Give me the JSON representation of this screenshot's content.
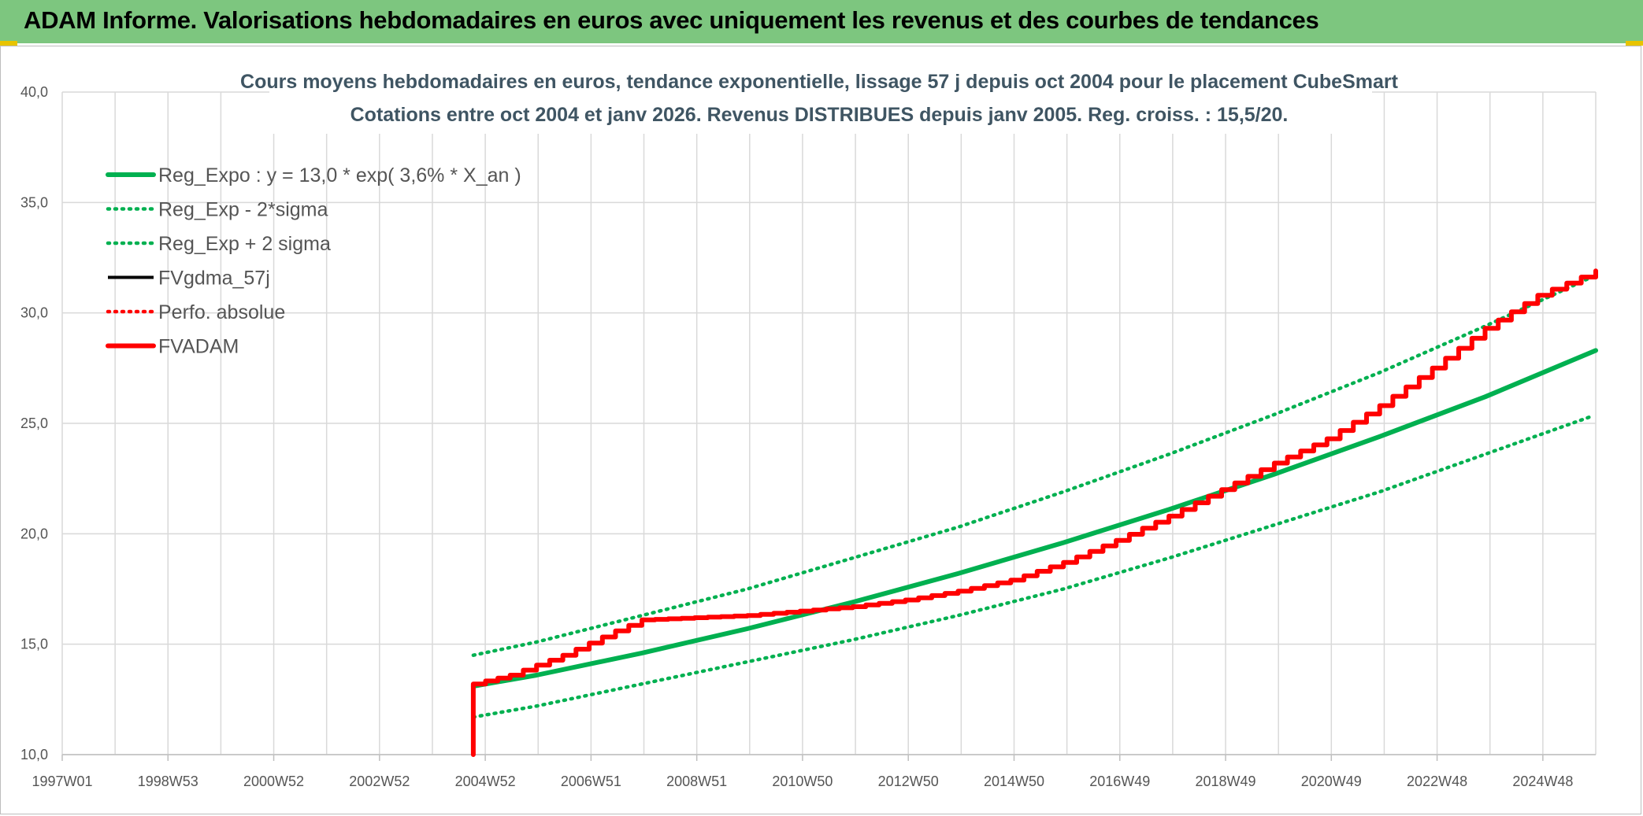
{
  "header": {
    "title": "ADAM Informe. Valorisations hebdomadaires en euros avec uniquement les revenus et des courbes de tendances"
  },
  "colors": {
    "banner": "#7dc67f",
    "green": "#00b050",
    "red": "#ff0000",
    "black": "#000000",
    "grid": "#d9d9d9"
  },
  "chart_data": {
    "type": "line",
    "title": "Cours moyens hebdomadaires en euros, tendance exponentielle, lissage 57 j depuis oct 2004 pour le placement CubeSmart",
    "subtitle": "Cotations entre oct 2004 et janv 2026. Revenus DISTRIBUES depuis janv 2005. Reg. croiss. : 15,5/20.",
    "xlabel": "",
    "ylabel": "",
    "x_ticks": [
      "1997W01",
      "1998W53",
      "2000W52",
      "2002W52",
      "2004W52",
      "2006W51",
      "2008W51",
      "2010W50",
      "2012W50",
      "2014W50",
      "2016W49",
      "2018W49",
      "2020W49",
      "2022W48",
      "2024W48"
    ],
    "x_range": [
      1997.0,
      2026.1
    ],
    "ylim": [
      10,
      40
    ],
    "y_ticks": [
      "10,0",
      "15,0",
      "20,0",
      "25,0",
      "30,0",
      "35,0",
      "40,0"
    ],
    "grid": true,
    "legend_position": "top-left",
    "series": [
      {
        "name": "Reg_Expo : y = 13,0 * exp( 3,6% *  X_an )",
        "style": "solid-thick",
        "color": "#00b050",
        "x": [
          2004.8,
          2006.0,
          2008.0,
          2010.0,
          2012.0,
          2014.0,
          2016.0,
          2018.0,
          2020.0,
          2022.0,
          2024.0,
          2026.1
        ],
        "y": [
          13.1,
          13.6,
          14.6,
          15.7,
          16.9,
          18.2,
          19.6,
          21.1,
          22.7,
          24.4,
          26.2,
          28.3
        ]
      },
      {
        "name": "Reg_Exp - 2*sigma",
        "style": "dotted",
        "color": "#00b050",
        "x": [
          2004.8,
          2006.0,
          2008.0,
          2010.0,
          2012.0,
          2014.0,
          2016.0,
          2018.0,
          2020.0,
          2022.0,
          2024.0,
          2026.0
        ],
        "y": [
          11.7,
          12.2,
          13.2,
          14.2,
          15.2,
          16.3,
          17.5,
          18.9,
          20.4,
          21.9,
          23.6,
          25.3
        ]
      },
      {
        "name": "Reg_Exp + 2 sigma",
        "style": "dotted",
        "color": "#00b050",
        "x": [
          2004.8,
          2006.0,
          2008.0,
          2010.0,
          2012.0,
          2014.0,
          2016.0,
          2018.0,
          2020.0,
          2022.0,
          2024.0,
          2026.0
        ],
        "y": [
          14.5,
          15.1,
          16.3,
          17.5,
          18.9,
          20.3,
          21.9,
          23.6,
          25.4,
          27.3,
          29.4,
          31.6
        ]
      },
      {
        "name": "FVgdma_57j",
        "style": "solid",
        "color": "#000000",
        "x": [],
        "y": []
      },
      {
        "name": "Perfo. absolue",
        "style": "dotted",
        "color": "#ff0000",
        "x": [],
        "y": []
      },
      {
        "name": "FVADAM",
        "style": "solid-thick",
        "color": "#ff0000",
        "x": [
          2004.8,
          2004.8,
          2005.5,
          2006.5,
          2007.5,
          2008.0,
          2009.0,
          2010.0,
          2011.0,
          2012.0,
          2013.0,
          2014.0,
          2015.0,
          2016.0,
          2017.0,
          2018.0,
          2019.0,
          2020.0,
          2021.0,
          2022.0,
          2023.0,
          2024.0,
          2025.0,
          2026.1
        ],
        "y": [
          10.0,
          13.2,
          13.6,
          14.5,
          15.6,
          16.1,
          16.2,
          16.3,
          16.5,
          16.7,
          17.0,
          17.4,
          17.9,
          18.7,
          19.7,
          20.8,
          22.0,
          23.2,
          24.3,
          25.8,
          27.5,
          29.3,
          30.8,
          31.9
        ]
      }
    ]
  }
}
